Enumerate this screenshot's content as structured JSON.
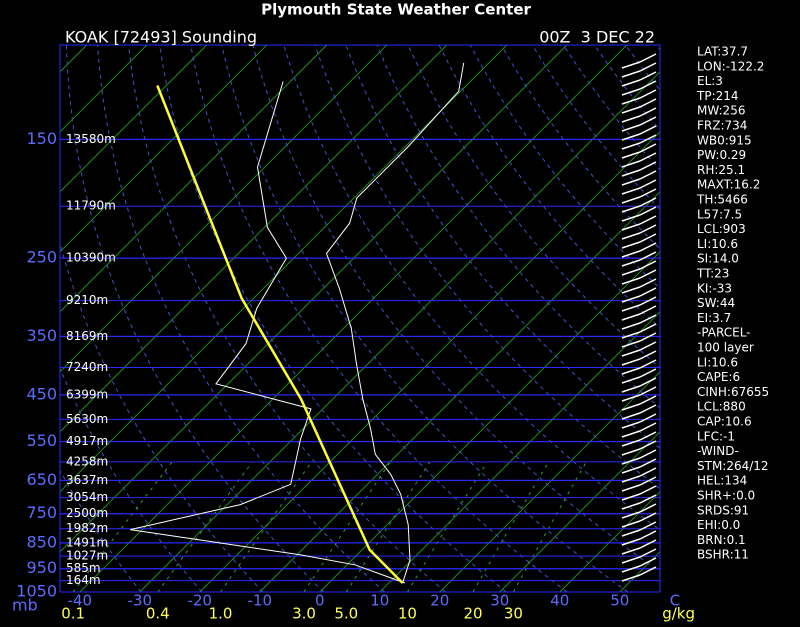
{
  "chart_data": {
    "type": "skewt",
    "title": "Plymouth State Weather Center",
    "subtitle": "KOAK [72493] Sounding",
    "time": "00Z  3 DEC 22",
    "ylabel": "mb",
    "ylim": [
      100,
      1050
    ],
    "yticks": [
      150,
      250,
      350,
      450,
      550,
      650,
      750,
      850,
      950,
      1050
    ],
    "heights": [
      {
        "value": 150,
        "label": "13580m"
      },
      {
        "value": 200,
        "label": "11790m"
      },
      {
        "value": 250,
        "label": "10390m"
      },
      {
        "value": 300,
        "label": "9210m"
      },
      {
        "value": 350,
        "label": "8169m"
      },
      {
        "value": 400,
        "label": "7240m"
      },
      {
        "value": 450,
        "label": "6399m"
      },
      {
        "value": 500,
        "label": "5630m"
      },
      {
        "value": 550,
        "label": "4917m"
      },
      {
        "value": 600,
        "label": "4258m"
      },
      {
        "value": 650,
        "label": "3637m"
      },
      {
        "value": 700,
        "label": "3054m"
      },
      {
        "value": 750,
        "label": "2500m"
      },
      {
        "value": 800,
        "label": "1982m"
      },
      {
        "value": 850,
        "label": "1491m"
      },
      {
        "value": 900,
        "label": "1027m"
      },
      {
        "value": 950,
        "label": "585m"
      },
      {
        "value": 1000,
        "label": "164m"
      }
    ],
    "xlabel": "C",
    "xlim": [
      -43.3,
      56.7
    ],
    "xticks": [
      -40,
      -30,
      -20,
      -10,
      0,
      10,
      20,
      30,
      40,
      50
    ],
    "mixing_ratio_label": "g/kg",
    "mixing_ratio_ticks": [
      0.1,
      0.4,
      {
        "value": 1,
        "label": "1.0"
      },
      {
        "value": 3,
        "label": "3.0"
      },
      {
        "value": 5,
        "label": "5.0"
      },
      10,
      20,
      30
    ],
    "series": [
      {
        "color": "#ffffff",
        "x": [
          1010,
          915,
          786,
          690,
          633,
          581,
          521,
          458,
          393,
          338,
          285,
          245,
          215,
          193,
          155,
          122,
          108
        ],
        "values": [
          12.3,
          9.7,
          3.5,
          -2.8,
          -7.8,
          -13.7,
          -18.7,
          -25,
          -32,
          -38.7,
          -47.3,
          -55.3,
          -56.5,
          -59.5,
          -59.5,
          -60.3,
          -64.2
        ]
      },
      {
        "color": "#ffffff",
        "x": [
          1010,
          934,
          895,
          803,
          721,
          661,
          544,
          478,
          429,
          361,
          310,
          250,
          219,
          169,
          117
        ],
        "values": [
          12.7,
          1.3,
          -9.5,
          -42,
          -27.8,
          -22.8,
          -28.7,
          -32,
          -52,
          -53.7,
          -57.8,
          -61.2,
          -69.5,
          -81.2,
          -91.2
        ]
      },
      {
        "color": "#ffff33",
        "x": [
          1010,
          876,
          458,
          297,
          119
        ],
        "values": [
          12.3,
          1.3,
          -35.3,
          -62,
          -111.5
        ]
      }
    ]
  },
  "indices": [
    "LAT:37.7",
    "LON:-122.2",
    "EL:3",
    "TP:214",
    "MW:256",
    "FRZ:734",
    "WB0:915",
    "PW:0.29",
    "RH:25.1",
    "MAXT:16.2",
    "TH:5466",
    "L57:7.5",
    "LCL:903",
    "LI:10.6",
    "SI:14.0",
    "TT:23",
    "KI:-33",
    "SW:44",
    "EI:3.7",
    "-PARCEL-",
    "100 layer",
    "LI:10.6",
    "CAPE:6",
    "CINH:67655",
    "LCL:880",
    "CAP:10.6",
    "LFC:-1",
    "-WIND-",
    "STM:264/12",
    "HEL:134",
    "SHR+:0.0",
    "SRDS:91",
    "EHI:0.0",
    "BRN:0.1",
    "BSHR:11"
  ]
}
